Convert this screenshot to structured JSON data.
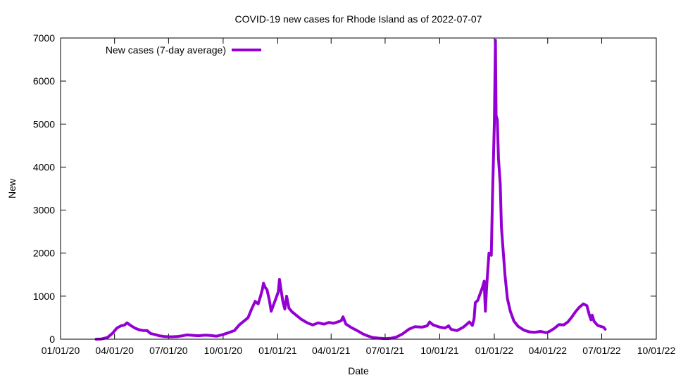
{
  "chart_data": {
    "type": "line",
    "title": "COVID-19 new cases for Rhode Island as of 2022-07-07",
    "xlabel": "Date",
    "ylabel": "New",
    "ylim": [
      0,
      7000
    ],
    "yticks": [
      0,
      1000,
      2000,
      3000,
      4000,
      5000,
      6000,
      7000
    ],
    "xlim": [
      "2020-01-01",
      "2022-10-01"
    ],
    "xticks": [
      "2020-01-01",
      "2020-04-01",
      "2020-07-01",
      "2020-10-01",
      "2021-01-01",
      "2021-04-01",
      "2021-07-01",
      "2021-10-01",
      "2022-01-01",
      "2022-04-01",
      "2022-07-01",
      "2022-10-01"
    ],
    "xtick_labels": [
      "01/01/20",
      "04/01/20",
      "07/01/20",
      "10/01/20",
      "01/01/21",
      "04/01/21",
      "07/01/21",
      "10/01/21",
      "01/01/22",
      "04/01/22",
      "07/01/22",
      "10/01/22"
    ],
    "grid": false,
    "legend_position": "top-left",
    "series": [
      {
        "name": "New cases (7-day average)",
        "color": "#9400d3",
        "points": [
          [
            "2020-03-01",
            0
          ],
          [
            "2020-03-10",
            5
          ],
          [
            "2020-03-20",
            40
          ],
          [
            "2020-03-28",
            130
          ],
          [
            "2020-04-05",
            260
          ],
          [
            "2020-04-12",
            310
          ],
          [
            "2020-04-18",
            330
          ],
          [
            "2020-04-22",
            380
          ],
          [
            "2020-04-28",
            320
          ],
          [
            "2020-05-05",
            260
          ],
          [
            "2020-05-12",
            220
          ],
          [
            "2020-05-20",
            200
          ],
          [
            "2020-05-26",
            200
          ],
          [
            "2020-06-01",
            130
          ],
          [
            "2020-06-08",
            110
          ],
          [
            "2020-06-15",
            80
          ],
          [
            "2020-06-25",
            60
          ],
          [
            "2020-07-05",
            55
          ],
          [
            "2020-07-15",
            60
          ],
          [
            "2020-07-25",
            80
          ],
          [
            "2020-08-01",
            100
          ],
          [
            "2020-08-10",
            90
          ],
          [
            "2020-08-20",
            80
          ],
          [
            "2020-09-01",
            95
          ],
          [
            "2020-09-10",
            85
          ],
          [
            "2020-09-20",
            70
          ],
          [
            "2020-10-01",
            110
          ],
          [
            "2020-10-10",
            150
          ],
          [
            "2020-10-20",
            200
          ],
          [
            "2020-10-28",
            330
          ],
          [
            "2020-11-05",
            420
          ],
          [
            "2020-11-12",
            500
          ],
          [
            "2020-11-18",
            700
          ],
          [
            "2020-11-24",
            880
          ],
          [
            "2020-11-29",
            820
          ],
          [
            "2020-12-03",
            1000
          ],
          [
            "2020-12-06",
            1150
          ],
          [
            "2020-12-08",
            1300
          ],
          [
            "2020-12-11",
            1200
          ],
          [
            "2020-12-14",
            1150
          ],
          [
            "2020-12-18",
            900
          ],
          [
            "2020-12-21",
            650
          ],
          [
            "2020-12-25",
            800
          ],
          [
            "2020-12-29",
            950
          ],
          [
            "2021-01-02",
            1100
          ],
          [
            "2021-01-04",
            1390
          ],
          [
            "2021-01-07",
            1100
          ],
          [
            "2021-01-10",
            850
          ],
          [
            "2021-01-13",
            700
          ],
          [
            "2021-01-16",
            1000
          ],
          [
            "2021-01-20",
            720
          ],
          [
            "2021-01-25",
            640
          ],
          [
            "2021-02-01",
            560
          ],
          [
            "2021-02-10",
            460
          ],
          [
            "2021-02-20",
            380
          ],
          [
            "2021-03-01",
            330
          ],
          [
            "2021-03-10",
            380
          ],
          [
            "2021-03-20",
            350
          ],
          [
            "2021-03-28",
            390
          ],
          [
            "2021-04-05",
            370
          ],
          [
            "2021-04-12",
            400
          ],
          [
            "2021-04-18",
            430
          ],
          [
            "2021-04-21",
            520
          ],
          [
            "2021-04-26",
            350
          ],
          [
            "2021-05-05",
            270
          ],
          [
            "2021-05-15",
            200
          ],
          [
            "2021-05-25",
            120
          ],
          [
            "2021-06-01",
            80
          ],
          [
            "2021-06-10",
            40
          ],
          [
            "2021-06-20",
            25
          ],
          [
            "2021-07-01",
            15
          ],
          [
            "2021-07-10",
            20
          ],
          [
            "2021-07-20",
            50
          ],
          [
            "2021-07-30",
            120
          ],
          [
            "2021-08-10",
            230
          ],
          [
            "2021-08-20",
            290
          ],
          [
            "2021-09-01",
            280
          ],
          [
            "2021-09-10",
            310
          ],
          [
            "2021-09-14",
            400
          ],
          [
            "2021-09-20",
            330
          ],
          [
            "2021-10-01",
            280
          ],
          [
            "2021-10-10",
            260
          ],
          [
            "2021-10-16",
            310
          ],
          [
            "2021-10-20",
            230
          ],
          [
            "2021-10-30",
            200
          ],
          [
            "2021-11-10",
            280
          ],
          [
            "2021-11-20",
            400
          ],
          [
            "2021-11-25",
            320
          ],
          [
            "2021-11-28",
            480
          ],
          [
            "2021-11-30",
            850
          ],
          [
            "2021-12-04",
            900
          ],
          [
            "2021-12-08",
            1050
          ],
          [
            "2021-12-12",
            1200
          ],
          [
            "2021-12-15",
            1350
          ],
          [
            "2021-12-17",
            650
          ],
          [
            "2021-12-19",
            1200
          ],
          [
            "2021-12-21",
            1600
          ],
          [
            "2021-12-23",
            2000
          ],
          [
            "2021-12-27",
            1950
          ],
          [
            "2021-12-29",
            3300
          ],
          [
            "2022-01-01",
            5000
          ],
          [
            "2022-01-03",
            6950
          ],
          [
            "2022-01-04",
            5200
          ],
          [
            "2022-01-06",
            5100
          ],
          [
            "2022-01-08",
            4200
          ],
          [
            "2022-01-11",
            3600
          ],
          [
            "2022-01-13",
            2600
          ],
          [
            "2022-01-16",
            2050
          ],
          [
            "2022-01-19",
            1500
          ],
          [
            "2022-01-23",
            950
          ],
          [
            "2022-01-28",
            650
          ],
          [
            "2022-02-03",
            420
          ],
          [
            "2022-02-10",
            300
          ],
          [
            "2022-02-20",
            210
          ],
          [
            "2022-03-01",
            170
          ],
          [
            "2022-03-10",
            160
          ],
          [
            "2022-03-20",
            180
          ],
          [
            "2022-03-30",
            150
          ],
          [
            "2022-04-05",
            190
          ],
          [
            "2022-04-12",
            250
          ],
          [
            "2022-04-20",
            340
          ],
          [
            "2022-04-28",
            330
          ],
          [
            "2022-05-05",
            400
          ],
          [
            "2022-05-12",
            520
          ],
          [
            "2022-05-18",
            640
          ],
          [
            "2022-05-24",
            740
          ],
          [
            "2022-05-31",
            820
          ],
          [
            "2022-06-06",
            780
          ],
          [
            "2022-06-10",
            570
          ],
          [
            "2022-06-13",
            450
          ],
          [
            "2022-06-15",
            560
          ],
          [
            "2022-06-18",
            420
          ],
          [
            "2022-06-24",
            320
          ],
          [
            "2022-07-01",
            290
          ],
          [
            "2022-07-04",
            280
          ],
          [
            "2022-07-07",
            230
          ]
        ]
      }
    ]
  }
}
